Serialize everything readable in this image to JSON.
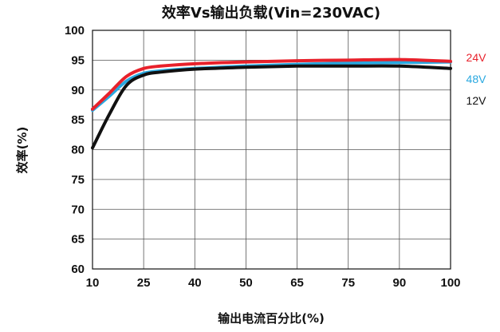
{
  "chart_data": {
    "type": "line",
    "title": "效率Vs输出负载(Vin=230VAC)",
    "xlabel": "输出电流百分比(%)",
    "ylabel": "效率(%)",
    "x_ticks": [
      "10",
      "25",
      "40",
      "50",
      "65",
      "75",
      "90",
      "100"
    ],
    "y_ticks": [
      "60",
      "65",
      "70",
      "75",
      "80",
      "85",
      "90",
      "95",
      "100"
    ],
    "ylim": [
      60,
      100
    ],
    "x_categorical_ticks": true,
    "grid": true,
    "legend_position": "right",
    "series": [
      {
        "name": "24V",
        "color": "#e8212b",
        "x": [
          10,
          15,
          20,
          25,
          30,
          40,
          50,
          65,
          75,
          90,
          100
        ],
        "y": [
          86.8,
          89.5,
          92.3,
          93.6,
          94.0,
          94.4,
          94.7,
          94.9,
          95.0,
          95.1,
          94.8
        ]
      },
      {
        "name": "48V",
        "color": "#29a8e0",
        "x": [
          10,
          15,
          20,
          25,
          30,
          40,
          50,
          65,
          75,
          90,
          100
        ],
        "y": [
          86.6,
          89.0,
          91.5,
          92.8,
          93.2,
          93.6,
          94.0,
          94.3,
          94.5,
          94.6,
          94.7
        ]
      },
      {
        "name": "12V",
        "color": "#111111",
        "x": [
          10,
          15,
          20,
          25,
          30,
          40,
          50,
          65,
          75,
          90,
          100
        ],
        "y": [
          80.3,
          86.0,
          90.8,
          92.5,
          93.0,
          93.5,
          93.8,
          94.0,
          94.0,
          94.0,
          93.6
        ]
      }
    ]
  }
}
